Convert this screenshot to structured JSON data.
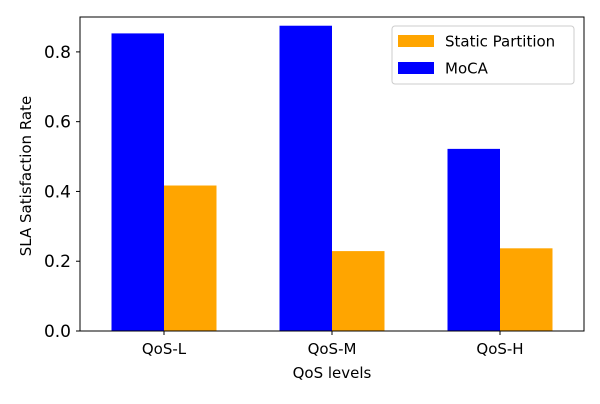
{
  "chart_data": {
    "type": "bar",
    "title": "",
    "xlabel": "QoS levels",
    "ylabel": "SLA Satisfaction Rate",
    "categories": [
      "QoS-L",
      "QoS-M",
      "QoS-H"
    ],
    "series": [
      {
        "name": "MoCA",
        "color": "#0000ff",
        "values": [
          0.853,
          0.875,
          0.522
        ]
      },
      {
        "name": "Static Partition",
        "color": "#ffa500",
        "values": [
          0.417,
          0.229,
          0.237
        ]
      }
    ],
    "ylim": [
      0,
      0.9
    ],
    "yticks": [
      0.0,
      0.2,
      0.4,
      0.6,
      0.8
    ],
    "ytick_labels": [
      "0.0",
      "0.2",
      "0.4",
      "0.6",
      "0.8"
    ],
    "legend": {
      "position": "top-right",
      "entries": [
        "Static Partition",
        "MoCA"
      ]
    },
    "grid": false
  }
}
